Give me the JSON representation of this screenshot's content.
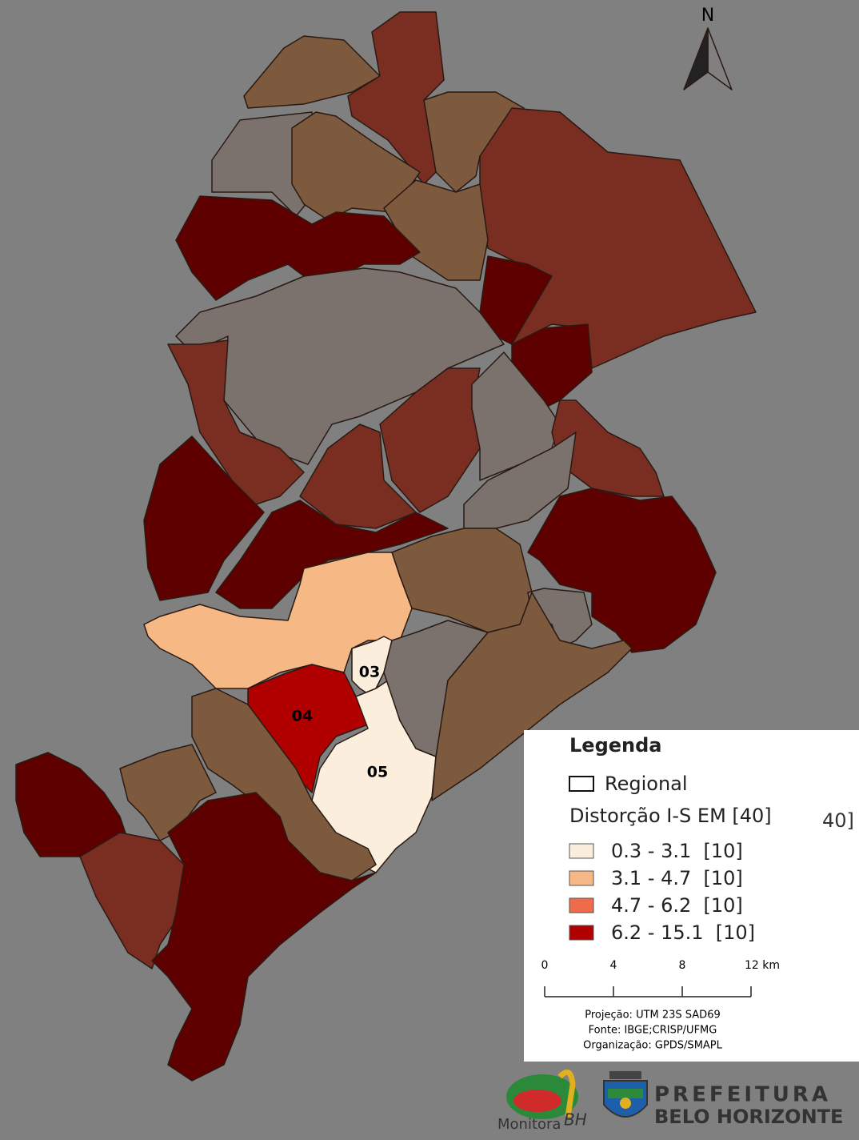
{
  "north": "N",
  "region_labels": [
    "03",
    "04",
    "05"
  ],
  "legend": {
    "title": "Legenda",
    "boundary": "Regional",
    "variable": "Distorção I-S EM [40]",
    "classes": [
      "0.3 - 3.1  [10]",
      "3.1 - 4.7  [10]",
      "4.7 - 6.2  [10]",
      "6.2 - 15.1  [10]"
    ],
    "scale_labels": [
      "0",
      "4",
      "8",
      "12 km"
    ],
    "notes": [
      "Projeção: UTM 23S SAD69",
      "Fonte: IBGE;CRISP/UFMG",
      "Organização: GPDS/SMAPL"
    ]
  },
  "fragment": "40]",
  "logos": {
    "monitora": "Monitora",
    "monitora_bh": "BH",
    "prefeitura": "PREFEITURA",
    "city": "BELO HORIZONTE"
  }
}
